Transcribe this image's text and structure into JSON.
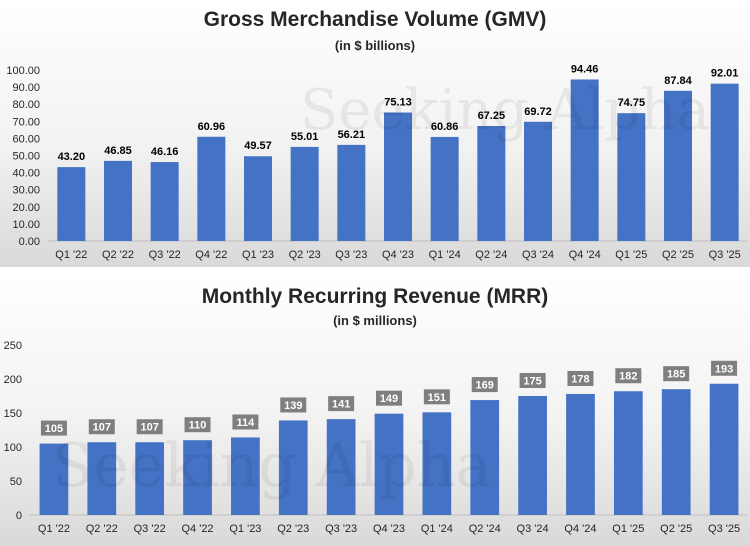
{
  "chart_data": [
    {
      "type": "bar",
      "title": "Gross Merchandise Volume (GMV)",
      "subtitle": "(in $ billions)",
      "categories": [
        "Q1 '22",
        "Q2 '22",
        "Q3 '22",
        "Q4 '22",
        "Q1 '23",
        "Q2 '23",
        "Q3 '23",
        "Q4 '23",
        "Q1 '24",
        "Q2 '24",
        "Q3 '24",
        "Q4 '24",
        "Q1 '25",
        "Q2 '25",
        "Q3 '25"
      ],
      "values": [
        43.2,
        46.85,
        46.16,
        60.96,
        49.57,
        55.01,
        56.21,
        75.13,
        60.86,
        67.25,
        69.72,
        94.46,
        74.75,
        87.84,
        92.01
      ],
      "data_labels": [
        "43.20",
        "46.85",
        "46.16",
        "60.96",
        "49.57",
        "55.01",
        "56.21",
        "75.13",
        "60.86",
        "67.25",
        "69.72",
        "94.46",
        "74.75",
        "87.84",
        "92.01"
      ],
      "ylim": [
        0,
        100
      ],
      "yticks": [
        "0.00",
        "10.00",
        "20.00",
        "30.00",
        "40.00",
        "50.00",
        "60.00",
        "70.00",
        "80.00",
        "90.00",
        "100.00"
      ],
      "grid": false,
      "label_style": "plain",
      "xlabel": "",
      "ylabel": ""
    },
    {
      "type": "bar",
      "title": "Monthly Recurring Revenue (MRR)",
      "subtitle": "(in $ millions)",
      "categories": [
        "Q1 '22",
        "Q2 '22",
        "Q3 '22",
        "Q4 '22",
        "Q1 '23",
        "Q2 '23",
        "Q3 '23",
        "Q4 '23",
        "Q1 '24",
        "Q2 '24",
        "Q3 '24",
        "Q4 '24",
        "Q1 '25",
        "Q2 '25",
        "Q3 '25"
      ],
      "values": [
        105,
        107,
        107,
        110,
        114,
        139,
        141,
        149,
        151,
        169,
        175,
        178,
        182,
        185,
        193
      ],
      "data_labels": [
        "105",
        "107",
        "107",
        "110",
        "114",
        "139",
        "141",
        "149",
        "151",
        "169",
        "175",
        "178",
        "182",
        "185",
        "193"
      ],
      "ylim": [
        0,
        250
      ],
      "yticks": [
        "0",
        "50",
        "100",
        "150",
        "200",
        "250"
      ],
      "grid": false,
      "label_style": "boxed",
      "xlabel": "",
      "ylabel": ""
    }
  ],
  "colors": {
    "bar": "#4472c4",
    "label_box": "#7f7f7f",
    "axis_text": "#262626"
  },
  "watermark": "Seeking Alpha"
}
